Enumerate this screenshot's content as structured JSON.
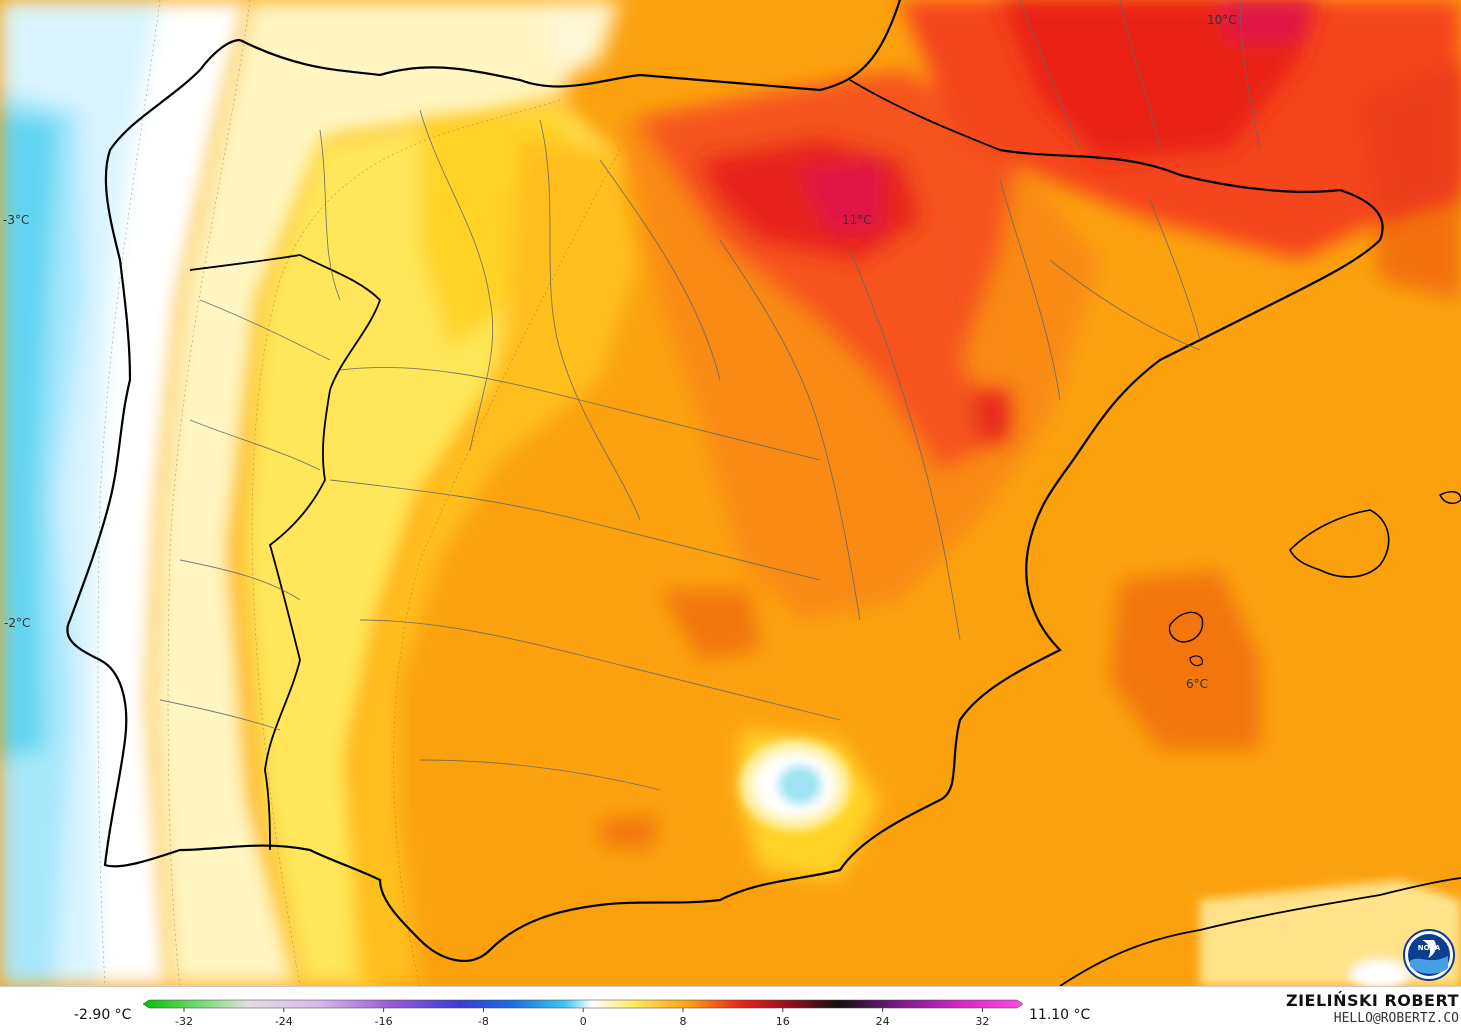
{
  "map": {
    "labels": [
      {
        "id": "max-north",
        "text": "10°C"
      },
      {
        "id": "max-ebro",
        "text": "11°C"
      },
      {
        "id": "atlantic-north",
        "text": "-3°C"
      },
      {
        "id": "atlantic-south",
        "text": "-2°C"
      },
      {
        "id": "balearic",
        "text": "6°C"
      }
    ]
  },
  "legend": {
    "min_value": "-2.90 °C",
    "max_value": "11.10 °C",
    "ticks": [
      "-32",
      "-24",
      "-16",
      "-8",
      "0",
      "8",
      "16",
      "24",
      "32"
    ]
  },
  "credit": {
    "name": "ZIELIŃSKI ROBERT",
    "email": "HELLO@ROBERTZ.CO"
  },
  "logo": {
    "text": "NOAA"
  }
}
